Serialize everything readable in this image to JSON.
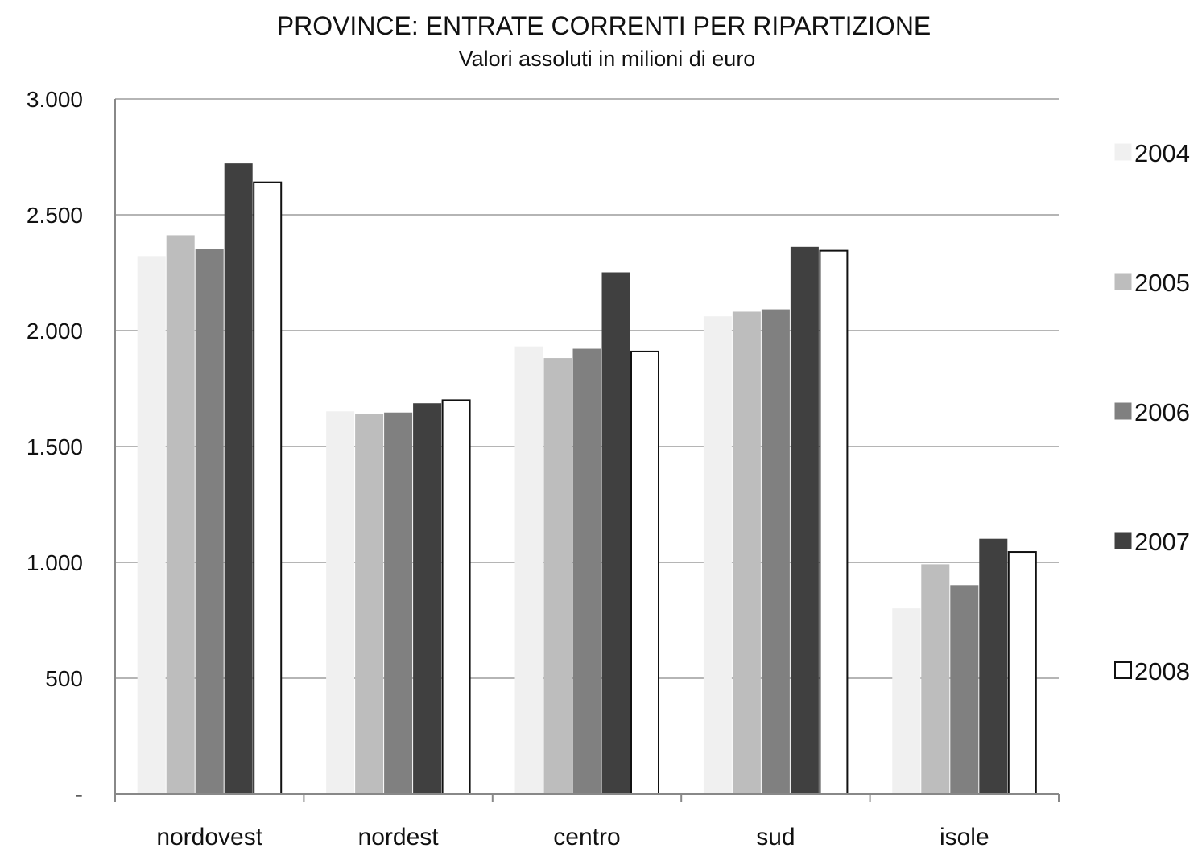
{
  "chart_data": {
    "type": "bar",
    "title": "PROVINCE: ENTRATE CORRENTI PER RIPARTIZIONE",
    "subtitle": "Valori assoluti in milioni di euro",
    "xlabel": "",
    "ylabel": "",
    "categories": [
      "nordovest",
      "nordest",
      "centro",
      "sud",
      "isole"
    ],
    "y_ticks": [
      {
        "value": 0,
        "label": "-"
      },
      {
        "value": 500,
        "label": "500"
      },
      {
        "value": 1000,
        "label": "1.000"
      },
      {
        "value": 1500,
        "label": "1.500"
      },
      {
        "value": 2000,
        "label": "2.000"
      },
      {
        "value": 2500,
        "label": "2.500"
      },
      {
        "value": 3000,
        "label": "3.000"
      }
    ],
    "ylim": [
      0,
      3000
    ],
    "grid": true,
    "legend_position": "right",
    "series": [
      {
        "name": "2004",
        "color": "#f0f0f0",
        "values": [
          2320,
          1650,
          1930,
          2060,
          800
        ]
      },
      {
        "name": "2005",
        "color": "#bdbdbd",
        "values": [
          2410,
          1640,
          1880,
          2080,
          990
        ]
      },
      {
        "name": "2006",
        "color": "#808080",
        "values": [
          2350,
          1645,
          1920,
          2090,
          900
        ]
      },
      {
        "name": "2007",
        "color": "#404040",
        "values": [
          2720,
          1685,
          2250,
          2360,
          1100
        ]
      },
      {
        "name": "2008",
        "color": "#ffffff",
        "values": [
          2640,
          1700,
          1910,
          2345,
          1045
        ]
      }
    ]
  }
}
